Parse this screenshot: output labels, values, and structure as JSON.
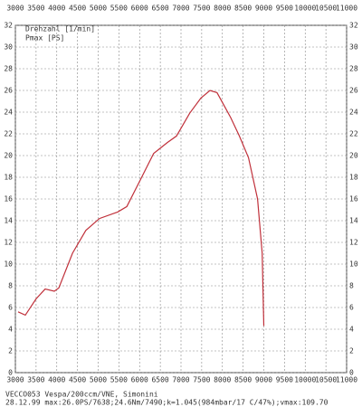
{
  "chart_data": {
    "type": "line",
    "legend": [
      "Drehzahl [1/min]",
      "Pmax [PS]"
    ],
    "footer": [
      "VECCO053  Vespa/200ccm/VNE, Simonini",
      "28.12.99  max:26.0PS/7638;24.6Nm/7490;k=1.045(984mbar/17 C/47%);vmax:109.70"
    ],
    "x": [
      3065,
      3240,
      3500,
      3720,
      3940,
      4050,
      4380,
      4700,
      5030,
      5470,
      5690,
      6010,
      6340,
      6670,
      6890,
      7210,
      7480,
      7700,
      7870,
      8200,
      8410,
      8630,
      8850,
      8960,
      9000
    ],
    "series": [
      {
        "name": "Pmax [PS]",
        "color": "#c0303a",
        "values": [
          5.6,
          5.3,
          6.8,
          7.7,
          7.5,
          7.8,
          11,
          13.1,
          14.2,
          14.8,
          15.3,
          17.7,
          20.2,
          21.2,
          21.8,
          23.9,
          25.3,
          26,
          25.8,
          23.5,
          21.8,
          19.8,
          16,
          11,
          4.3
        ]
      }
    ],
    "xlim": [
      3000,
      11000
    ],
    "xticks": [
      3000,
      3500,
      4000,
      4500,
      5000,
      5500,
      6000,
      6500,
      7000,
      7500,
      8000,
      8500,
      9000,
      9500,
      10000,
      10500,
      11000
    ],
    "ylim": [
      0,
      32
    ],
    "yticks": [
      0,
      2,
      4,
      6,
      8,
      10,
      12,
      14,
      16,
      18,
      20,
      22,
      24,
      26,
      28,
      30,
      32
    ],
    "grid": true
  }
}
